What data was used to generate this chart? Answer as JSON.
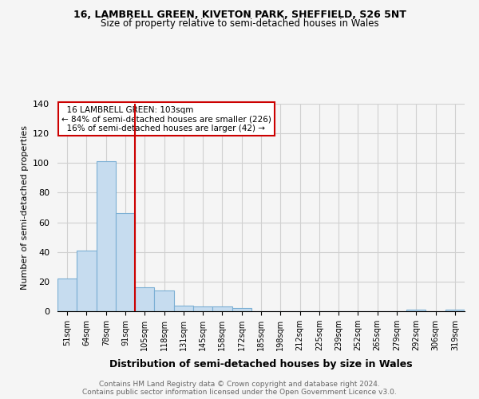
{
  "title1": "16, LAMBRELL GREEN, KIVETON PARK, SHEFFIELD, S26 5NT",
  "title2": "Size of property relative to semi-detached houses in Wales",
  "xlabel": "Distribution of semi-detached houses by size in Wales",
  "ylabel": "Number of semi-detached properties",
  "categories": [
    "51sqm",
    "64sqm",
    "78sqm",
    "91sqm",
    "105sqm",
    "118sqm",
    "131sqm",
    "145sqm",
    "158sqm",
    "172sqm",
    "185sqm",
    "198sqm",
    "212sqm",
    "225sqm",
    "239sqm",
    "252sqm",
    "265sqm",
    "279sqm",
    "292sqm",
    "306sqm",
    "319sqm"
  ],
  "values": [
    22,
    41,
    101,
    66,
    16,
    14,
    4,
    3,
    3,
    2,
    0,
    0,
    0,
    0,
    0,
    0,
    0,
    0,
    1,
    0,
    1
  ],
  "bar_color": "#c6dcef",
  "bar_edge_color": "#7bafd4",
  "property_line_idx": 4,
  "property_label": "16 LAMBRELL GREEN: 103sqm",
  "pct_smaller": 84,
  "n_smaller": 226,
  "pct_larger": 16,
  "n_larger": 42,
  "annotation_box_color": "#ffffff",
  "annotation_box_edge": "#cc0000",
  "vline_color": "#cc0000",
  "footer1": "Contains HM Land Registry data © Crown copyright and database right 2024.",
  "footer2": "Contains public sector information licensed under the Open Government Licence v3.0.",
  "ylim": [
    0,
    140
  ],
  "bg_color": "#f5f5f5",
  "grid_color": "#d0d0d0"
}
